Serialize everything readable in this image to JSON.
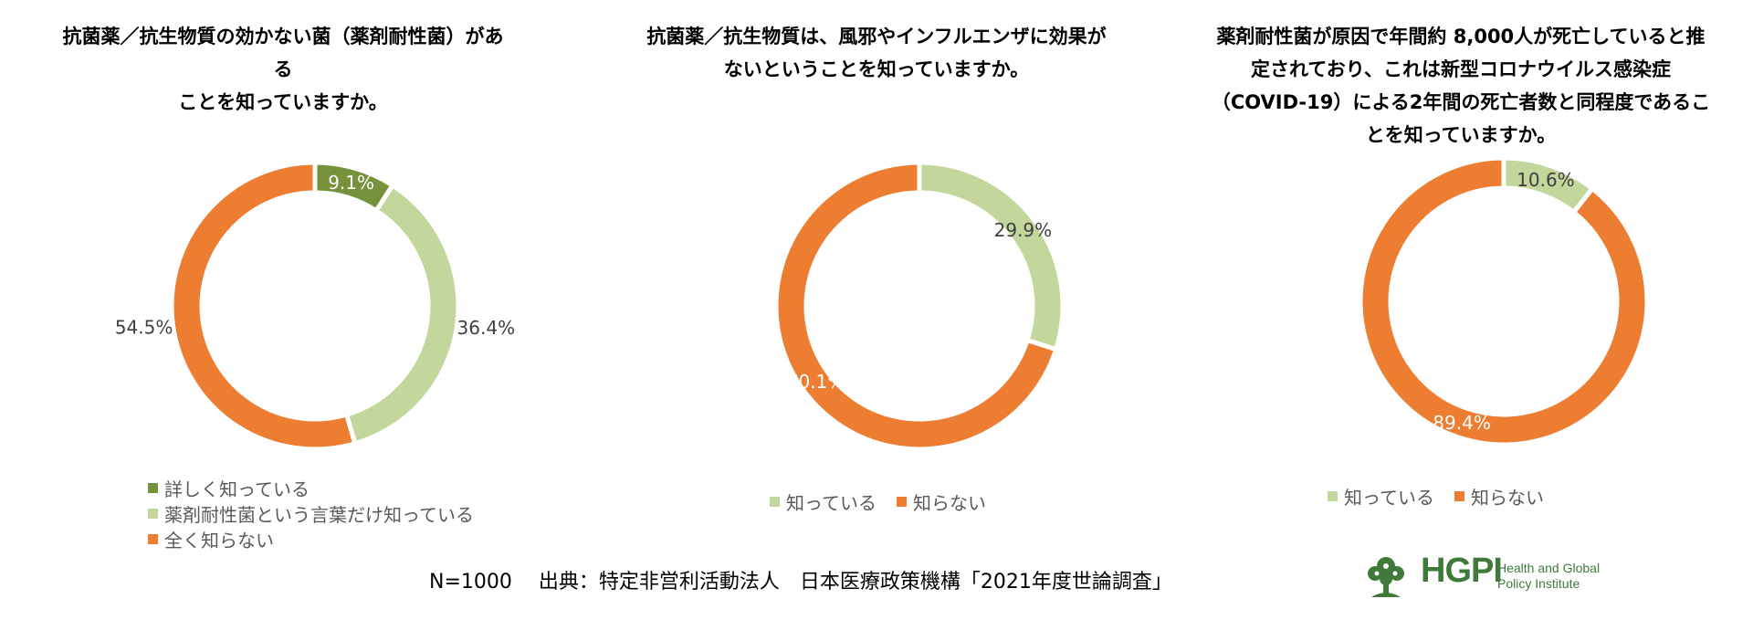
{
  "colors": {
    "dark_green": "#76923c",
    "light_green": "#c3d69b",
    "orange": "#ed7d31",
    "logo_green": "#3f7a3b"
  },
  "chart_data": [
    {
      "type": "pie",
      "title": "抗菌薬／抗生物質の効かない菌（薬剤耐性菌）がある\nことを知っていますか。",
      "series": [
        {
          "name": "詳しく知っている",
          "value": 9.1,
          "label": "9.1%",
          "color": "#76923c"
        },
        {
          "name": "薬剤耐性菌という言葉だけ知っている",
          "value": 36.4,
          "label": "36.4%",
          "color": "#c3d69b"
        },
        {
          "name": "全く知らない",
          "value": 54.5,
          "label": "54.5%",
          "color": "#ed7d31"
        }
      ],
      "legend_position": "bottom"
    },
    {
      "type": "pie",
      "title": "抗菌薬／抗生物質は、風邪やインフルエンザに効果が\nないということを知っていますか。",
      "series": [
        {
          "name": "知っている",
          "value": 29.9,
          "label": "29.9%",
          "color": "#c3d69b"
        },
        {
          "name": "知らない",
          "value": 70.1,
          "label": "70.1%",
          "color": "#ed7d31"
        }
      ],
      "legend_position": "bottom"
    },
    {
      "type": "pie",
      "title": "薬剤耐性菌が原因で年間約 8,000人が死亡していると推\n定されており、これは新型コロナウイルス感染症\n（COVID-19）による2年間の死亡者数と同程度であるこ\nとを知っていますか。",
      "series": [
        {
          "name": "知っている",
          "value": 10.6,
          "label": "10.6%",
          "color": "#c3d69b"
        },
        {
          "name": "知らない",
          "value": 89.4,
          "label": "89.4%",
          "color": "#ed7d31"
        }
      ],
      "legend_position": "bottom"
    }
  ],
  "footer": {
    "text": "N=1000　 出典：特定非営利活動法人　日本医療政策機構「2021年度世論調査」"
  },
  "logo": {
    "name": "HGPI",
    "subtitle": "Health and Global\nPolicy Institute"
  }
}
